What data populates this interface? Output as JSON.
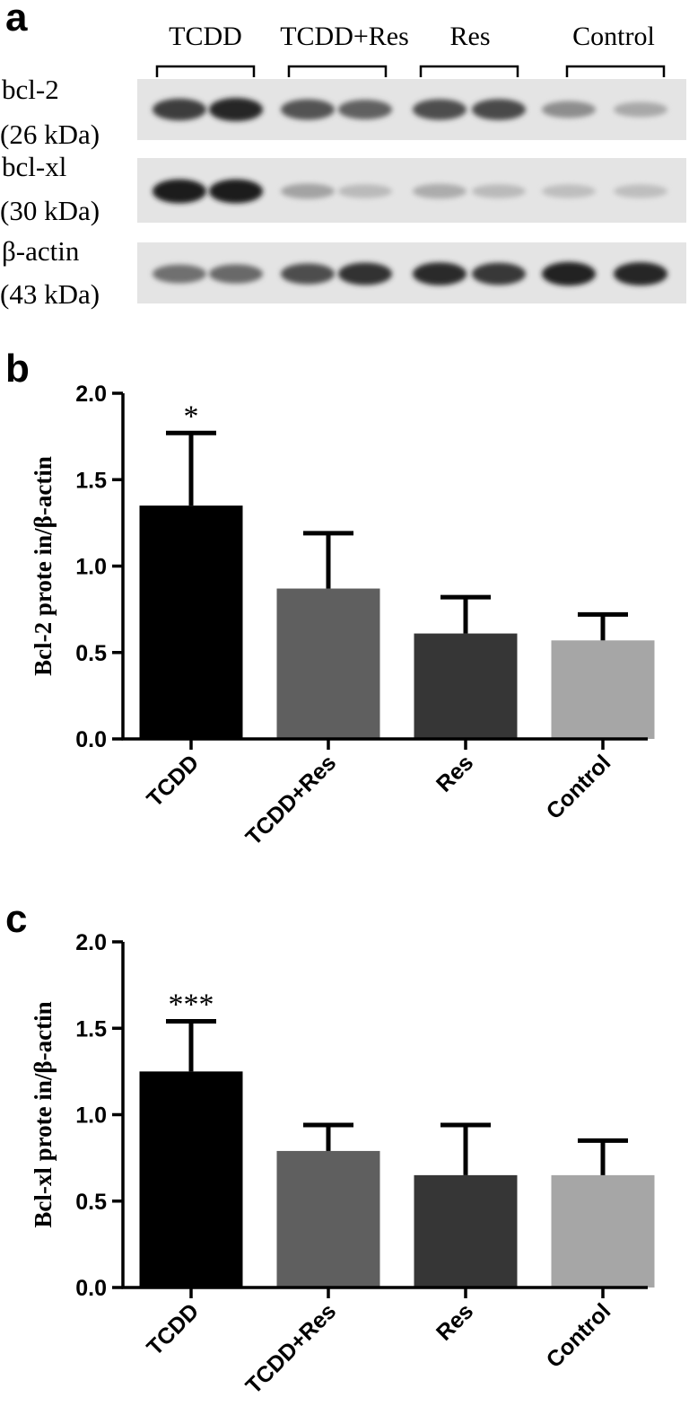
{
  "panel_a": {
    "letter": "a",
    "groups": [
      "TCDD",
      "TCDD+Res",
      "Res",
      "Control"
    ],
    "blots": [
      {
        "name": "bcl-2",
        "size": "(26 kDa)",
        "intensities": [
          0.78,
          0.88,
          0.68,
          0.62,
          0.7,
          0.72,
          0.42,
          0.3
        ]
      },
      {
        "name": "bcl-xl",
        "size": "(30 kDa)",
        "intensities": [
          0.92,
          0.92,
          0.32,
          0.22,
          0.28,
          0.22,
          0.2,
          0.2
        ]
      },
      {
        "name": "β-actin",
        "size": "(43 kDa)",
        "intensities": [
          0.55,
          0.58,
          0.7,
          0.82,
          0.85,
          0.8,
          0.9,
          0.88
        ]
      }
    ]
  },
  "chart_data": [
    {
      "type": "bar",
      "panel": "b",
      "categories": [
        "TCDD",
        "TCDD+Res",
        "Res",
        "Control"
      ],
      "values": [
        1.35,
        0.87,
        0.61,
        0.57
      ],
      "errors": [
        0.42,
        0.32,
        0.21,
        0.15
      ],
      "colors": [
        "#000000",
        "#5f5f5f",
        "#363636",
        "#a6a6a6"
      ],
      "annotations": [
        "*",
        "",
        "",
        ""
      ],
      "ylabel": "Bcl-2 prote in/β-actin",
      "ylim": [
        0,
        2.0
      ],
      "yticks": [
        "0.0",
        "0.5",
        "1.0",
        "1.5",
        "2.0"
      ],
      "grid": false
    },
    {
      "type": "bar",
      "panel": "c",
      "categories": [
        "TCDD",
        "TCDD+Res",
        "Res",
        "Control"
      ],
      "values": [
        1.25,
        0.79,
        0.65,
        0.65
      ],
      "errors": [
        0.29,
        0.15,
        0.29,
        0.2
      ],
      "colors": [
        "#000000",
        "#5f5f5f",
        "#363636",
        "#a6a6a6"
      ],
      "annotations": [
        "***",
        "",
        "",
        ""
      ],
      "ylabel": "Bcl-xl prote in/β-actin",
      "ylim": [
        0,
        2.0
      ],
      "yticks": [
        "0.0",
        "0.5",
        "1.0",
        "1.5",
        "2.0"
      ],
      "grid": false
    }
  ]
}
